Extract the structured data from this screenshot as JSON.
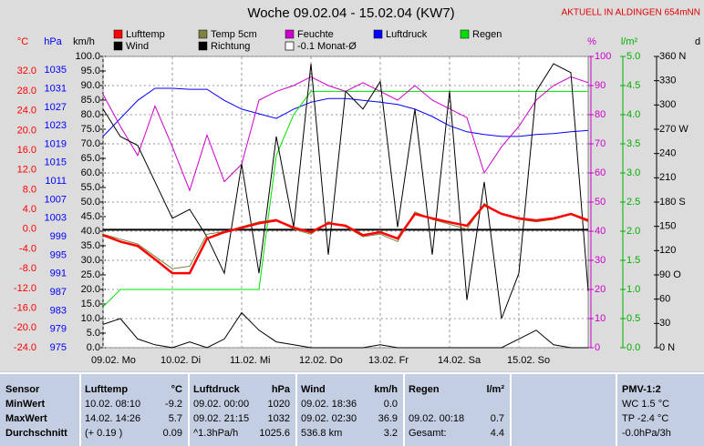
{
  "chart_data": {
    "type": "line",
    "title": "Woche 09.02.04 - 15.02.04 (KW7)",
    "annotation": "AKTUELL IN ALDINGEN 654mNN",
    "grid": true,
    "xlim": [
      0,
      7
    ],
    "xticks": [
      {
        "value": 0,
        "label": "09.02. Mo"
      },
      {
        "value": 1,
        "label": "10.02. Di"
      },
      {
        "value": 2,
        "label": "11.02. Mi"
      },
      {
        "value": 3,
        "label": "12.02. Do"
      },
      {
        "value": 4,
        "label": "13.02. Fr"
      },
      {
        "value": 5,
        "label": "14.02. Sa"
      },
      {
        "value": 6,
        "label": "15.02. So"
      }
    ],
    "x": [
      0,
      0.25,
      0.5,
      0.75,
      1,
      1.25,
      1.5,
      1.75,
      2,
      2.25,
      2.5,
      2.75,
      3,
      3.25,
      3.5,
      3.75,
      4,
      4.25,
      4.5,
      4.75,
      5,
      5.25,
      5.5,
      5.75,
      6,
      6.25,
      6.5,
      6.75,
      7
    ],
    "axes": [
      {
        "id": "temp",
        "label": "°C",
        "color": "#ff0000",
        "lim": [
          -24,
          35
        ],
        "ticks": [
          {
            "value": 32,
            "label": "32.0"
          },
          {
            "value": 28,
            "label": "28.0"
          },
          {
            "value": 24,
            "label": "24.0"
          },
          {
            "value": 20,
            "label": "20.0"
          },
          {
            "value": 16,
            "label": "16.0"
          },
          {
            "value": 12,
            "label": "12.0"
          },
          {
            "value": 8,
            "label": "8.0"
          },
          {
            "value": 4,
            "label": "4.0"
          },
          {
            "value": 0,
            "label": "0.0"
          },
          {
            "value": -4,
            "label": "-4.0"
          },
          {
            "value": -8,
            "label": "-8.0"
          },
          {
            "value": -12,
            "label": "-12.0"
          },
          {
            "value": -16,
            "label": "-16.0"
          },
          {
            "value": -20,
            "label": "-20.0"
          },
          {
            "value": -24,
            "label": "-24.0"
          }
        ]
      },
      {
        "id": "hpa",
        "label": "hPa",
        "color": "#0000ff",
        "lim": [
          975,
          1038
        ],
        "ticks": [
          1035,
          1031,
          1027,
          1023,
          1019,
          1015,
          1011,
          1007,
          1003,
          999,
          995,
          991,
          987,
          983,
          979,
          975
        ]
      },
      {
        "id": "kmh",
        "label": "km/h",
        "color": "#000000",
        "lim": [
          0,
          100
        ],
        "ticks": [
          {
            "value": 100,
            "label": "100.0"
          },
          {
            "value": 95,
            "label": "95.0"
          },
          {
            "value": 90,
            "label": "90.0"
          },
          {
            "value": 85,
            "label": "85.0"
          },
          {
            "value": 80,
            "label": "80.0"
          },
          {
            "value": 75,
            "label": "75.0"
          },
          {
            "value": 70,
            "label": "70.0"
          },
          {
            "value": 65,
            "label": "65.0"
          },
          {
            "value": 60,
            "label": "60.0"
          },
          {
            "value": 55,
            "label": "55.0"
          },
          {
            "value": 50,
            "label": "50.0"
          },
          {
            "value": 45,
            "label": "45.0"
          },
          {
            "value": 40,
            "label": "40.0"
          },
          {
            "value": 35,
            "label": "35.0"
          },
          {
            "value": 30,
            "label": "30.0"
          },
          {
            "value": 25,
            "label": "25.0"
          },
          {
            "value": 20,
            "label": "20.0"
          },
          {
            "value": 15,
            "label": "15.0"
          },
          {
            "value": 10,
            "label": "10.0"
          },
          {
            "value": 5,
            "label": "5.0"
          },
          {
            "value": 0,
            "label": "0.0"
          }
        ]
      },
      {
        "id": "pct",
        "label": "%",
        "color": "#cc00cc",
        "lim": [
          0,
          100
        ],
        "ticks": [
          100,
          90,
          80,
          70,
          60,
          50,
          40,
          30,
          20,
          10,
          0
        ]
      },
      {
        "id": "rain",
        "label": "l/m²",
        "color": "#00b000",
        "lim": [
          0,
          5
        ],
        "ticks": [
          {
            "value": 5,
            "label": "5.0"
          },
          {
            "value": 4.5,
            "label": "4.5"
          },
          {
            "value": 4,
            "label": "4.0"
          },
          {
            "value": 3.5,
            "label": "3.5"
          },
          {
            "value": 3,
            "label": "3.0"
          },
          {
            "value": 2.5,
            "label": "2.5"
          },
          {
            "value": 2,
            "label": "2.0"
          },
          {
            "value": 1.5,
            "label": "1.5"
          },
          {
            "value": 1,
            "label": "1.0"
          },
          {
            "value": 0.5,
            "label": "0.5"
          },
          {
            "value": 0,
            "label": "0.0"
          }
        ]
      },
      {
        "id": "dir",
        "label": "d",
        "color": "#000000",
        "lim": [
          0,
          360
        ],
        "ticks": [
          {
            "value": 360,
            "label": "360 N"
          },
          330,
          300,
          {
            "value": 270,
            "label": "270 W"
          },
          240,
          210,
          {
            "value": 180,
            "label": "180 S"
          },
          150,
          120,
          {
            "value": 90,
            "label": "90 O"
          },
          60,
          30,
          {
            "value": 0,
            "label": "0 N"
          }
        ]
      }
    ],
    "series": [
      {
        "name": "Lufttemp",
        "color": "#ff0000",
        "axis": "temp",
        "values": [
          -1.2,
          -2.5,
          -3.4,
          -6.1,
          -8.9,
          -8.9,
          -1.9,
          -0.6,
          0.3,
          1.2,
          1.8,
          0.3,
          -0.6,
          1.2,
          0.7,
          -1.2,
          -0.6,
          -1.9,
          3.1,
          2.2,
          1.4,
          0.7,
          4.9,
          3.1,
          2.2,
          1.8,
          2.2,
          3.1,
          1.8
        ]
      },
      {
        "name": "Temp 5cm",
        "color": "#808040",
        "axis": "temp",
        "values": [
          -1.0,
          -2.0,
          -3.0,
          -5.5,
          -8.0,
          -7.5,
          -1.0,
          -0.5,
          0.5,
          1.5,
          2.0,
          0.0,
          -1.0,
          1.5,
          0.5,
          -1.5,
          -1.0,
          -2.5,
          3.5,
          2.0,
          1.0,
          0.0,
          5.2,
          3.0,
          2.0,
          1.5,
          2.0,
          3.0,
          1.5
        ]
      },
      {
        "name": "Feuchte",
        "color": "#cc00cc",
        "axis": "pct",
        "values": [
          87,
          76,
          66,
          83,
          69,
          54,
          73,
          57,
          63,
          85,
          88,
          90,
          93,
          90,
          88,
          91,
          88,
          85,
          90,
          85,
          82,
          79,
          60,
          69,
          76,
          85,
          90,
          93,
          91
        ]
      },
      {
        "name": "Luftdruck",
        "color": "#0000ff",
        "axis": "hpa",
        "values": [
          1020.7,
          1024.6,
          1028.5,
          1031.1,
          1031.1,
          1030.9,
          1030.9,
          1028.5,
          1026.6,
          1025.6,
          1024.6,
          1026.6,
          1028.1,
          1028.9,
          1028.9,
          1028.5,
          1028.1,
          1027.6,
          1026.6,
          1025.0,
          1023.0,
          1021.7,
          1021.1,
          1020.7,
          1020.7,
          1021.1,
          1021.3,
          1021.7,
          1022.0
        ]
      },
      {
        "name": "Regen",
        "color": "#00e000",
        "axis": "rain",
        "values": [
          0.7,
          1.0,
          1.0,
          1.0,
          1.0,
          1.0,
          1.0,
          1.0,
          1.0,
          1.0,
          3.3,
          4.0,
          4.4,
          4.4,
          4.4,
          4.4,
          4.4,
          4.4,
          4.4,
          4.4,
          4.4,
          4.4,
          4.4,
          4.4,
          4.4,
          4.4,
          4.4,
          4.4,
          4.4
        ]
      },
      {
        "name": "Wind",
        "color": "#000000",
        "axis": "kmh",
        "values": [
          8,
          10,
          3,
          1,
          0,
          2,
          0,
          3,
          12,
          6,
          2,
          1,
          0,
          0,
          0,
          0,
          1,
          0,
          0,
          0,
          0,
          0,
          0,
          0,
          3,
          6,
          1,
          0,
          0
        ]
      },
      {
        "name": "Richtung",
        "color": "#000000",
        "axis": "dir",
        "values": [
          295,
          261,
          250,
          205,
          160,
          171,
          137,
          92,
          227,
          92,
          261,
          149,
          351,
          115,
          317,
          295,
          329,
          149,
          295,
          115,
          317,
          59,
          205,
          36,
          92,
          317,
          351,
          340,
          70
        ]
      }
    ],
    "reference": {
      "name": "-0.1 Monat-Ø",
      "value": -0.1,
      "axis": "temp",
      "color": "#000000"
    }
  },
  "table": {
    "header": [
      "Sensor",
      "Lufttemp",
      "°C",
      "Luftdruck",
      "hPa",
      "Wind",
      "km/h",
      "Regen",
      "l/m²",
      "PMV-1:2"
    ],
    "rows": [
      [
        "MinWert",
        "10.02. 08:10",
        "-9.2",
        "09.02. 00:00",
        "1020",
        "09.02. 18:36",
        "0.0",
        null,
        null,
        "WC 1.5 °C"
      ],
      [
        "MaxWert",
        "14.02. 14:26",
        "5.7",
        "09.02. 21:15",
        "1032",
        "09.02. 02:30",
        "36.9",
        "09.02. 00:18",
        "0.7",
        "TP -2.4 °C"
      ],
      [
        "Durchschnitt",
        "(+ 0.19 )",
        "0.09",
        "^1.3hPa/h",
        "1025.6",
        "536.8 km",
        "3.2",
        "Gesamt:",
        "4.4",
        "-0.0hPa/3h"
      ]
    ]
  }
}
